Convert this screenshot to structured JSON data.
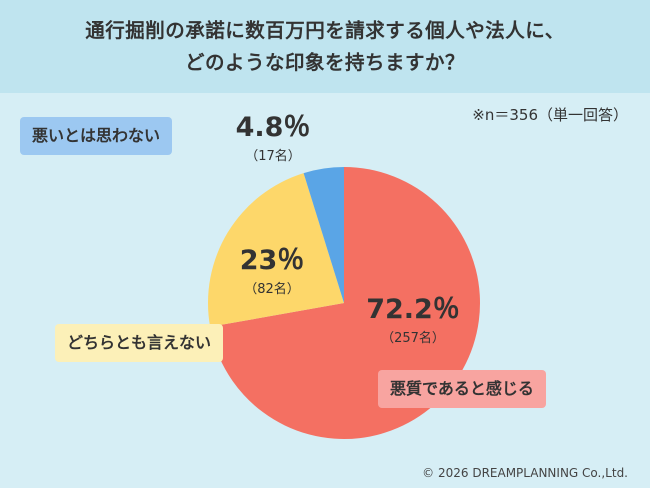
{
  "header": {
    "title_line1": "通行掘削の承諾に数百万円を請求する個人や法人に、",
    "title_line2": "どのような印象を持ちますか？"
  },
  "note": "※n＝356（単一回答）",
  "footer": "© 2026 DREAMPLANNING Co.,Ltd.",
  "colors": {
    "red": "#f47062",
    "yellow": "#fdd76a",
    "blue": "#5aa5e6"
  },
  "chart_data": {
    "type": "pie",
    "slices": [
      {
        "category": "悪質であると感じる",
        "percent_label": "72.2％",
        "count_label": "（257名）",
        "value": 72.2,
        "count": 257,
        "color": "#f47062"
      },
      {
        "category": "どちらとも言えない",
        "percent_label": "23％",
        "count_label": "（82名）",
        "value": 23,
        "count": 82,
        "color": "#fdd76a"
      },
      {
        "category": "悪いとは思わない",
        "percent_label": "4.8％",
        "count_label": "（17名）",
        "value": 4.8,
        "count": 17,
        "color": "#5aa5e6"
      }
    ]
  }
}
